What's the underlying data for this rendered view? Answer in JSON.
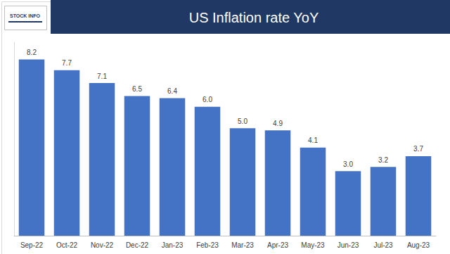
{
  "chart_data": {
    "type": "bar",
    "title": "US Inflation rate YoY",
    "annotation": "STOCK INFO",
    "categories": [
      "Sep-22",
      "Oct-22",
      "Nov-22",
      "Dec-22",
      "Jan-23",
      "Feb-23",
      "Mar-23",
      "Apr-23",
      "May-23",
      "Jun-23",
      "Jul-23",
      "Aug-23"
    ],
    "values": [
      8.2,
      7.7,
      7.1,
      6.5,
      6.4,
      6.0,
      5.0,
      4.9,
      4.1,
      3.0,
      3.2,
      3.7
    ],
    "value_labels": [
      "8.2",
      "7.7",
      "7.1",
      "6.5",
      "6.4",
      "6.0",
      "5.0",
      "4.9",
      "4.1",
      "3.0",
      "3.2",
      "3.7"
    ],
    "color": "#4472c4",
    "ylim": [
      0,
      9
    ],
    "grid": false,
    "data_labels": true,
    "tick_labels": "x"
  }
}
